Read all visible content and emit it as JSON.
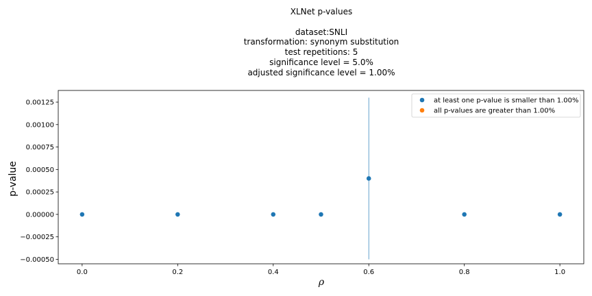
{
  "chart_data": {
    "type": "scatter",
    "title": "XLNet p-values",
    "subtitle_lines": [
      "dataset:SNLI",
      "transformation: synonym substitution",
      "test repetitions: 5",
      "significance level = 5.0%",
      "adjusted significance level = 1.00%"
    ],
    "xlabel": "ρ",
    "ylabel": "p-value",
    "xlim": [
      -0.05,
      1.05
    ],
    "ylim": [
      -0.00055,
      0.00138
    ],
    "x_ticks": [
      "0.0",
      "0.2",
      "0.4",
      "0.6",
      "0.8",
      "1.0"
    ],
    "x_tick_values": [
      0.0,
      0.2,
      0.4,
      0.6,
      0.8,
      1.0
    ],
    "y_ticks": [
      "0.00125",
      "0.00100",
      "0.00075",
      "0.00050",
      "0.00025",
      "0.00000",
      "−0.00025",
      "−0.00050"
    ],
    "y_tick_values": [
      0.00125,
      0.001,
      0.00075,
      0.0005,
      0.00025,
      0.0,
      -0.00025,
      -0.0005
    ],
    "series": [
      {
        "name": "at least one p-value is smaller than 1.00%",
        "color": "#1f77b4",
        "x": [
          0.0,
          0.2,
          0.4,
          0.5,
          0.6,
          0.8,
          1.0
        ],
        "y": [
          0.0,
          0.0,
          0.0,
          0.0,
          0.0004,
          0.0,
          0.0
        ],
        "error_bars": [
          {
            "x": 0.6,
            "low": -0.0005,
            "high": 0.0013
          }
        ]
      },
      {
        "name": "all p-values are greater than 1.00%",
        "color": "#ff7f0e",
        "x": [],
        "y": []
      }
    ],
    "legend_position": "top-right",
    "grid": false
  }
}
